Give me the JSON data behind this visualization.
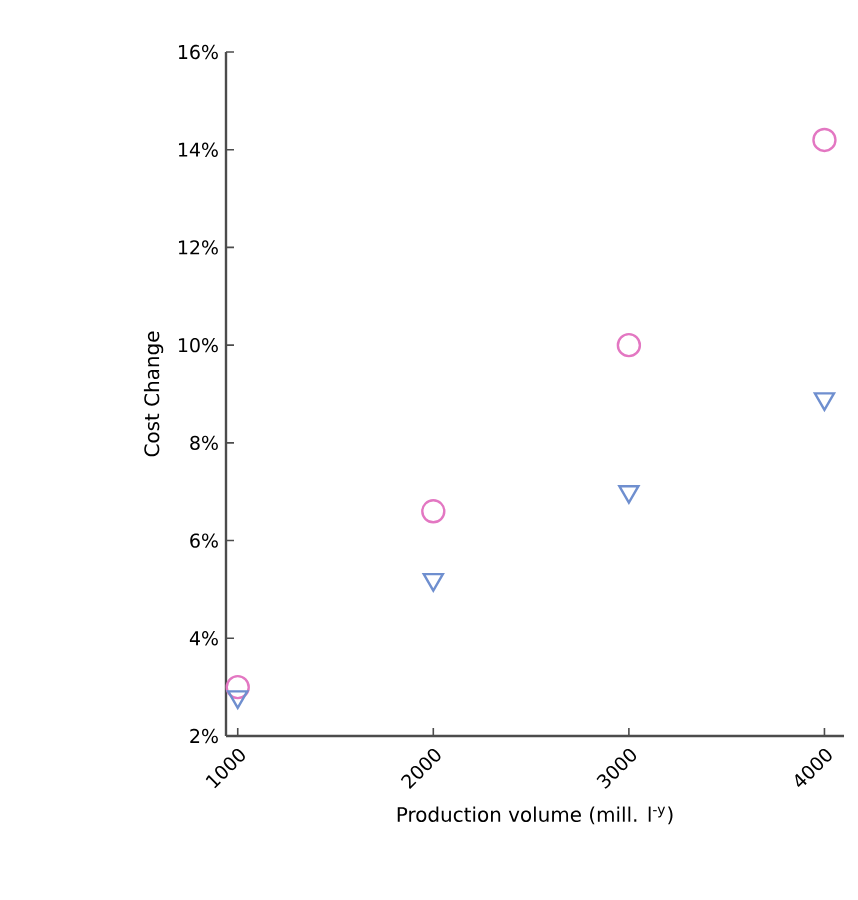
{
  "chart_data": {
    "type": "scatter",
    "xlabel": "Production volume (mill. l$^{-y}$)",
    "ylabel": "Cost Change",
    "x": [
      1000,
      2000,
      3000,
      4000
    ],
    "series": [
      {
        "color": "#e377c2",
        "marker": "circle",
        "values": [
          3.0,
          6.6,
          10.0,
          14.2
        ]
      },
      {
        "color": "#6f8fcf",
        "marker": "triangle",
        "values": [
          2.8,
          5.2,
          7.0,
          8.9
        ]
      }
    ],
    "xlim": [
      940,
      4100
    ],
    "ylim": [
      2,
      16
    ],
    "xticks": [
      1000,
      2000,
      3000,
      4000
    ],
    "yticks": [
      {
        "value": 2,
        "label": "2%"
      },
      {
        "value": 4,
        "label": "4%"
      },
      {
        "value": 6,
        "label": "6%"
      },
      {
        "value": 8,
        "label": "8%"
      },
      {
        "value": 10,
        "label": "10%"
      },
      {
        "value": 12,
        "label": "12%"
      },
      {
        "value": 14,
        "label": "14%"
      },
      {
        "value": 16,
        "label": "16%"
      }
    ],
    "grid": false
  }
}
